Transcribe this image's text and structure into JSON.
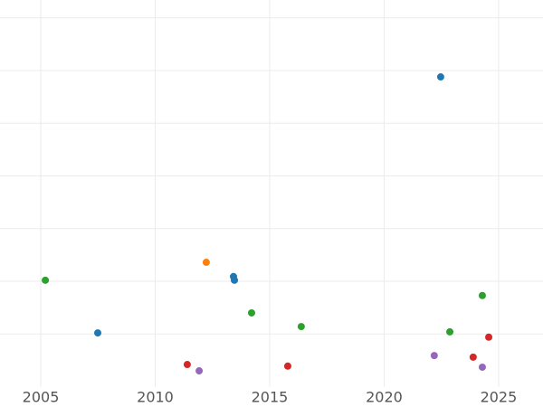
{
  "chart_data": {
    "type": "scatter",
    "xlim": [
      2003.22,
      2026.94
    ],
    "xticks": [
      2005,
      2010,
      2015,
      2020,
      2025
    ],
    "ylim": [
      0,
      7.34
    ],
    "yticks": [
      1,
      2,
      3,
      4,
      5,
      6,
      7
    ],
    "grid": true,
    "series": [
      {
        "color": "#1f77b4",
        "x": [
          2022.47,
          2007.49,
          2013.42,
          2013.46
        ],
        "values": [
          5.88,
          1.02,
          2.09,
          2.02
        ]
      },
      {
        "color": "#ff7f0e",
        "x": [
          2012.23
        ],
        "values": [
          2.36
        ]
      },
      {
        "color": "#2ca02c",
        "x": [
          2005.2,
          2014.21,
          2016.38,
          2024.29,
          2022.87
        ],
        "values": [
          2.02,
          1.4,
          1.14,
          1.73,
          1.04
        ]
      },
      {
        "color": "#d62728",
        "x": [
          2011.4,
          2015.79,
          2023.89,
          2024.57
        ],
        "values": [
          0.42,
          0.39,
          0.56,
          0.94
        ]
      },
      {
        "color": "#9467bd",
        "x": [
          2011.92,
          2022.19,
          2024.29
        ],
        "values": [
          0.3,
          0.59,
          0.37
        ]
      }
    ]
  }
}
